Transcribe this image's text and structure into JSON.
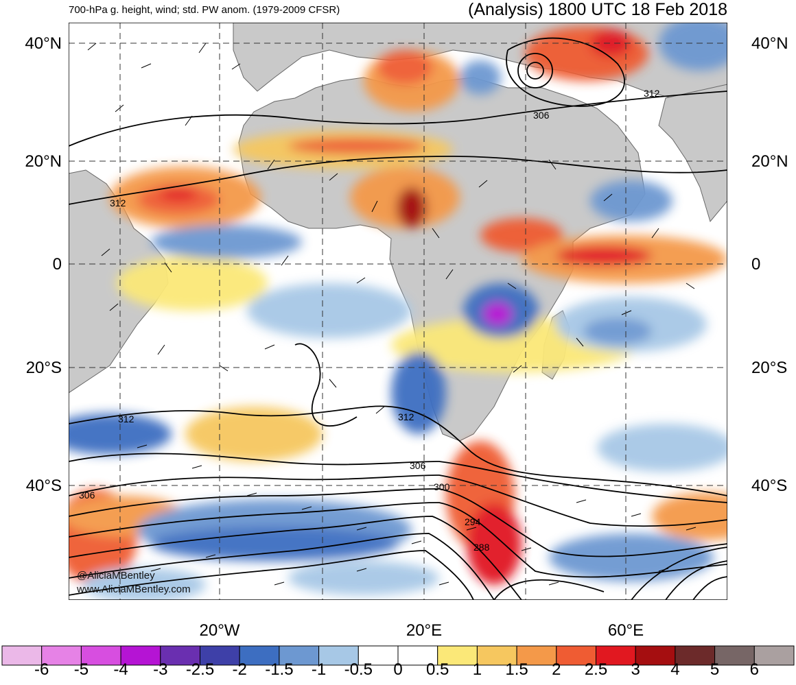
{
  "header": {
    "left_title": "700-hPa g. height, wind; std. PW anom. (1979-2009 CFSR)",
    "right_title": "(Analysis) 1800 UTC 18 Feb 2018"
  },
  "latitude_labels": [
    "40°N",
    "20°N",
    "0",
    "20°S",
    "40°S"
  ],
  "longitude_labels": [
    "20°W",
    "20°E",
    "60°E"
  ],
  "contour_labels": [
    "312",
    "312",
    "306",
    "312",
    "312",
    "306",
    "306",
    "300",
    "294",
    "288"
  ],
  "credits": [
    "@AliciaMBentley",
    "www.AliciaMBentley.com"
  ],
  "colorbar": {
    "labels": [
      "-6",
      "-5",
      "-4",
      "-3",
      "-2.5",
      "-2",
      "-1.5",
      "-1",
      "-0.5",
      "0",
      "0.5",
      "1",
      "1.5",
      "2",
      "2.5",
      "3",
      "4",
      "5",
      "6"
    ],
    "colors": [
      "#ebb8e8",
      "#e682e6",
      "#d74ee0",
      "#b514d4",
      "#6a2fb0",
      "#3e40a8",
      "#3d6ec1",
      "#6d98d1",
      "#a7c8e6",
      "#ffffff",
      "#ffffff",
      "#fbe878",
      "#f6c75f",
      "#f49949",
      "#ef5c33",
      "#e11820",
      "#a50e10",
      "#6c2a2a",
      "#776666",
      "#aaa0a0"
    ]
  },
  "palette": {
    "land": "#c9c9c9",
    "ocean": "#ffffff",
    "border": "#666666"
  }
}
